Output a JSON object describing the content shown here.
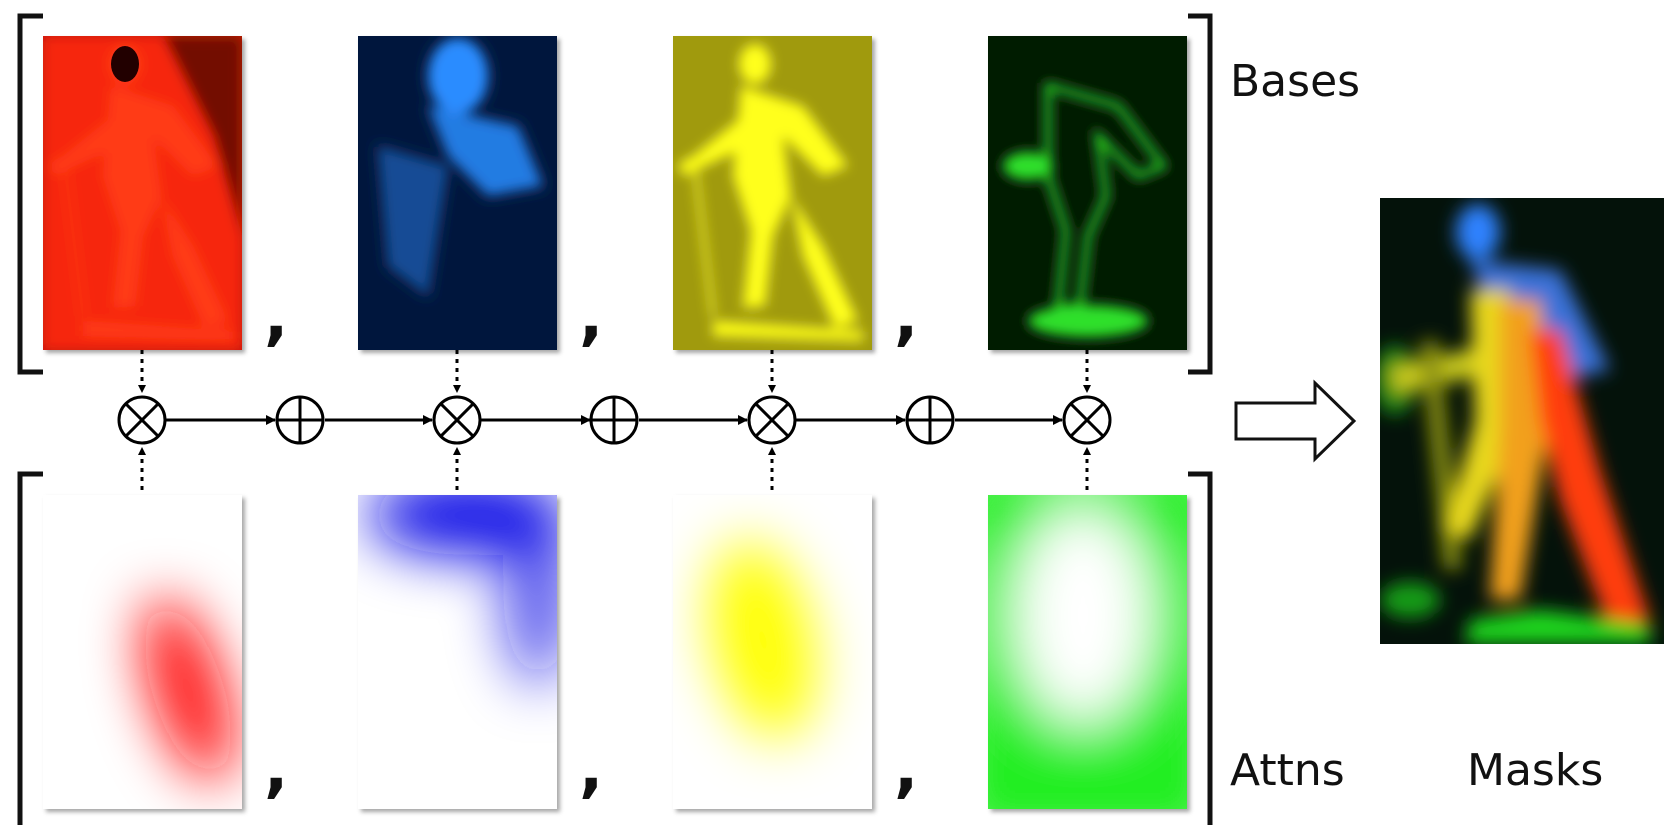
{
  "labels": {
    "bases": "Bases",
    "attns": "Attns",
    "masks": "Masks"
  },
  "separator": ",",
  "rows": {
    "bases": [
      {
        "color": "#ff2a10",
        "bg": "#c51808",
        "name": "red"
      },
      {
        "color": "#2c8cff",
        "bg": "#04183e",
        "name": "blue"
      },
      {
        "color": "#ffff1a",
        "bg": "#a09a10",
        "name": "yellow"
      },
      {
        "color": "#2ee02a",
        "bg": "#031a06",
        "name": "green"
      }
    ],
    "attns": [
      {
        "color": "#ff0f0f",
        "name": "red"
      },
      {
        "color": "#1010e6",
        "name": "blue"
      },
      {
        "color": "#ffff00",
        "name": "yellow"
      },
      {
        "color": "#22ee22",
        "name": "green"
      }
    ]
  },
  "operators": [
    "multiply",
    "add",
    "multiply",
    "add",
    "multiply",
    "add",
    "multiply"
  ]
}
